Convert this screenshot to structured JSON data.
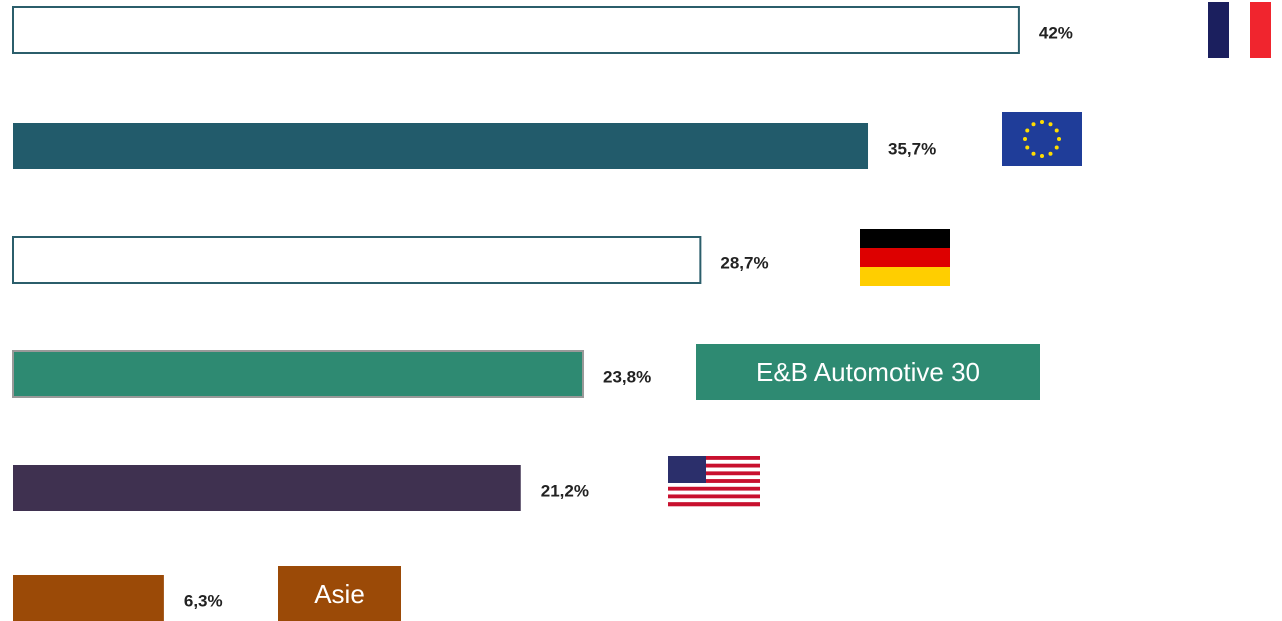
{
  "chart_data": {
    "type": "bar",
    "orientation": "horizontal",
    "categories": [
      null,
      null,
      null,
      "E&B Automotive 30",
      null,
      "Asie"
    ],
    "values": [
      42,
      35.7,
      28.7,
      23.8,
      21.2,
      6.3
    ],
    "value_labels": [
      "42%",
      "35,7%",
      "28,7%",
      "23,8%",
      "21,2%",
      "6,3%"
    ],
    "colors": [
      "#ffffff",
      "#225b6b",
      "#ffffff",
      "#2e8a72",
      "#3f3150",
      "#9b4a07"
    ]
  }
}
